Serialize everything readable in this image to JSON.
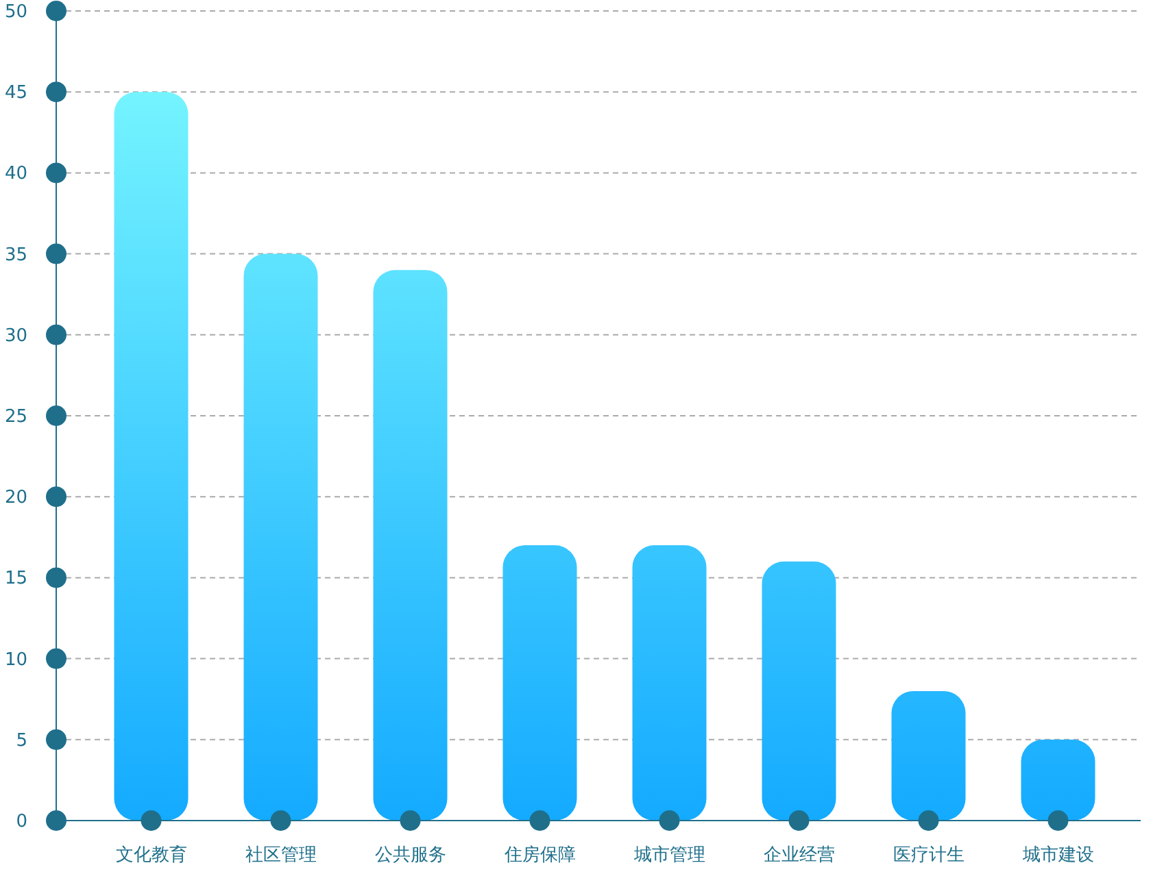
{
  "chart_data": {
    "type": "bar",
    "categories": [
      "文化教育",
      "社区管理",
      "公共服务",
      "住房保障",
      "城市管理",
      "企业经营",
      "医疗计生",
      "城市建设"
    ],
    "values": [
      45,
      35,
      34,
      17,
      17,
      16,
      8,
      5
    ],
    "color": "#14aaff",
    "ylim": [
      0,
      50
    ],
    "yticks": [
      0,
      5,
      10,
      15,
      20,
      25,
      30,
      35,
      40,
      45,
      50
    ],
    "grid": "y"
  }
}
